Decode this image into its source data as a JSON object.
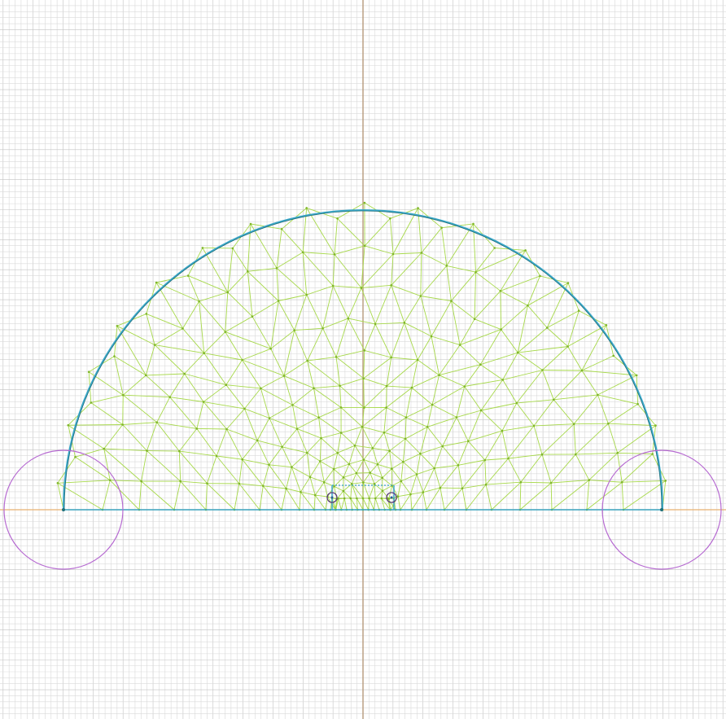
{
  "app": {
    "view": "mesh-editor-canvas"
  },
  "canvas": {
    "background": "#ffffff",
    "grid": {
      "minor_color": "#d9d9d9",
      "major_color": "#c2c2c2"
    },
    "axes": {
      "x_axis_color": "#e8b070",
      "y_axis_color": "#b79a7c"
    },
    "colors": {
      "boundary": "#3aa7c8",
      "boundary_dark": "#1f6f7a",
      "mesh": "#a7d94a",
      "mesh_node": "#7fb52a",
      "control_circle": "#b66ad1",
      "hole": "#2a5a9a",
      "hole_ring": "#5a3b7a"
    },
    "icons": {
      "left_control_handle": "circle-handle-icon",
      "right_control_handle": "circle-handle-icon",
      "left_hole": "hole-marker-icon",
      "right_hole": "hole-marker-icon"
    }
  }
}
